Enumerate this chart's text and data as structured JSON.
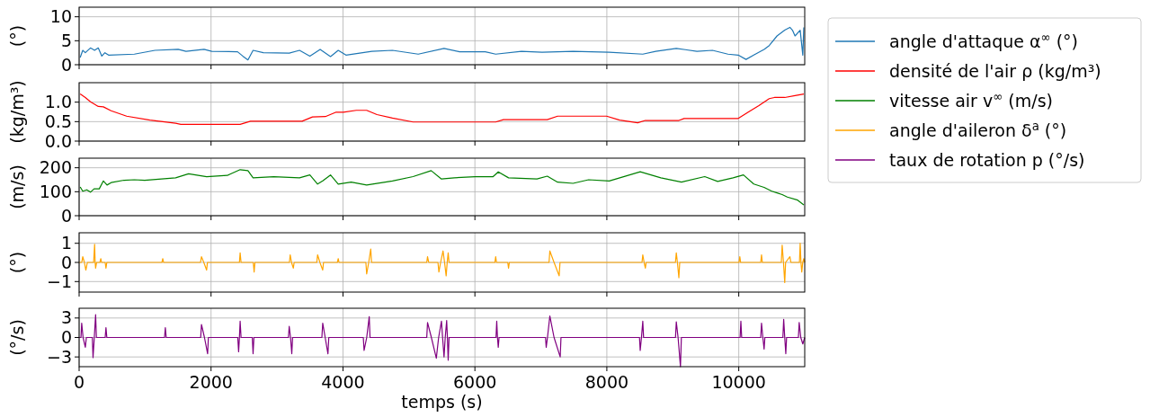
{
  "chart_data": [
    {
      "type": "line",
      "ylabel": "(°)",
      "xlim": [
        0,
        11000
      ],
      "xticks": [
        0,
        2000,
        4000,
        6000,
        8000,
        10000
      ],
      "ylim": [
        0,
        12
      ],
      "yticks": [
        0,
        5,
        10
      ],
      "grid": true,
      "legend": "right",
      "tick_labels": "y",
      "series": [
        {
          "name": "angle d'attaque α$^{∞}$ (°)",
          "color": "#1f77b4",
          "x": [
            16,
            55,
            94,
            172,
            235,
            290,
            344,
            391,
            446,
            837,
            1150,
            1502,
            1620,
            1894,
            2011,
            2402,
            2481,
            2559,
            2637,
            2793,
            3185,
            3341,
            3498,
            3654,
            3811,
            3928,
            4045,
            4437,
            4750,
            5141,
            5532,
            5767,
            6158,
            6315,
            6706,
            7019,
            7488,
            8036,
            8545,
            8741,
            9053,
            9366,
            9601,
            9836,
            9992,
            10110,
            10227,
            10384,
            10462,
            10580,
            10697,
            10775,
            10814,
            10853,
            10931,
            10971,
            10986
          ],
          "values": [
            1.5,
            3,
            2.5,
            3.5,
            3,
            3.5,
            1.8,
            2.5,
            2,
            2.2,
            3,
            3.2,
            2.8,
            3.2,
            2.8,
            2.7,
            1.8,
            1,
            3,
            2.5,
            2.4,
            3,
            1.8,
            3.2,
            1.7,
            3,
            2,
            2.8,
            3,
            2.2,
            3.4,
            2.7,
            2.7,
            2.2,
            2.8,
            2.6,
            2.8,
            2.6,
            2.2,
            2.8,
            3.4,
            2.8,
            3,
            2.2,
            2,
            1.1,
            2,
            3.2,
            4,
            6,
            7.2,
            7.8,
            7.2,
            6,
            7.2,
            2,
            7.8
          ]
        }
      ]
    },
    {
      "type": "line",
      "ylabel": "(kg/m³)",
      "xlim": [
        0,
        11000
      ],
      "xticks": [
        0,
        2000,
        4000,
        6000,
        8000,
        10000
      ],
      "ylim": [
        0,
        1.5
      ],
      "yticks": [
        {
          "value": 0,
          "label": "0.0"
        },
        {
          "value": 0.5,
          "label": "0.5"
        },
        {
          "value": 1,
          "label": "1.0"
        }
      ],
      "grid": true,
      "legend": "right",
      "tick_labels": "y",
      "series": [
        {
          "name": "densité de l'air ρ (kg/m³)",
          "color": "#ff0000",
          "x": [
            16,
            94,
            172,
            290,
            368,
            485,
            720,
            1072,
            1463,
            1542,
            2441,
            2598,
            3380,
            3537,
            3733,
            3889,
            4006,
            4202,
            4359,
            4515,
            4750,
            5063,
            6315,
            6432,
            7097,
            7254,
            7997,
            8193,
            8467,
            8584,
            9093,
            9171,
            9992,
            10149,
            10305,
            10462,
            10540,
            10697,
            10853,
            10986
          ],
          "values": [
            1.21,
            1.12,
            1.01,
            0.89,
            0.88,
            0.78,
            0.64,
            0.54,
            0.46,
            0.43,
            0.43,
            0.51,
            0.51,
            0.62,
            0.63,
            0.74,
            0.74,
            0.79,
            0.79,
            0.68,
            0.59,
            0.49,
            0.49,
            0.55,
            0.55,
            0.64,
            0.64,
            0.54,
            0.47,
            0.53,
            0.53,
            0.58,
            0.58,
            0.75,
            0.91,
            1.09,
            1.12,
            1.12,
            1.17,
            1.21
          ]
        }
      ]
    },
    {
      "type": "line",
      "ylabel": "(m/s)",
      "xlim": [
        0,
        11000
      ],
      "xticks": [
        0,
        2000,
        4000,
        6000,
        8000,
        10000
      ],
      "ylim": [
        0,
        240
      ],
      "yticks": [
        0,
        100,
        200
      ],
      "grid": true,
      "legend": "right",
      "tick_labels": "y",
      "series": [
        {
          "name": "vitesse air v$^{∞}$ (m/s)",
          "color": "#008000",
          "x": [
            16,
            55,
            117,
            172,
            227,
            305,
            368,
            423,
            485,
            681,
            837,
            994,
            1463,
            1659,
            1933,
            2246,
            2441,
            2559,
            2637,
            2950,
            3341,
            3498,
            3615,
            3693,
            3811,
            3928,
            4124,
            4359,
            4750,
            5063,
            5337,
            5493,
            5689,
            6002,
            6276,
            6354,
            6510,
            6941,
            7097,
            7254,
            7488,
            7723,
            8036,
            8506,
            8819,
            9132,
            9484,
            9680,
            9914,
            10071,
            10227,
            10384,
            10501,
            10580,
            10658,
            10736,
            10892,
            10986
          ],
          "values": [
            120,
            102,
            108,
            98,
            112,
            112,
            145,
            128,
            138,
            148,
            150,
            148,
            158,
            175,
            163,
            168,
            192,
            188,
            158,
            163,
            158,
            170,
            132,
            145,
            170,
            132,
            140,
            128,
            145,
            163,
            188,
            153,
            158,
            163,
            163,
            183,
            158,
            153,
            165,
            140,
            135,
            150,
            145,
            183,
            158,
            140,
            163,
            143,
            158,
            170,
            132,
            118,
            102,
            95,
            88,
            78,
            65,
            45
          ]
        }
      ]
    },
    {
      "type": "line",
      "ylabel": "(°)",
      "xlim": [
        0,
        11000
      ],
      "xticks": [
        0,
        2000,
        4000,
        6000,
        8000,
        10000
      ],
      "ylim": [
        -1.55,
        1.55
      ],
      "yticks": [
        {
          "value": -1,
          "label": "−1"
        },
        0,
        1
      ],
      "grid": true,
      "legend": "right",
      "tick_labels": "y",
      "series": [
        {
          "name": "angle d'aileron δ$^{a}$ (°)",
          "color": "#ffa500",
          "x": [
            0,
            40,
            55,
            80,
            102,
            125,
            220,
            235,
            243,
            250,
            265,
            315,
            329,
            340,
            395,
            407,
            420,
            1255,
            1268,
            1280,
            1840,
            1855,
            1890,
            1933,
            1945,
            2430,
            2441,
            2455,
            2640,
            2653,
            2665,
            3188,
            3200,
            3220,
            3247,
            3260,
            3603,
            3615,
            3650,
            3693,
            3705,
            3915,
            3928,
            3940,
            4347,
            4359,
            4390,
            4421,
            4433,
            5270,
            5282,
            5300,
            5440,
            5454,
            5480,
            5517,
            5540,
            5564,
            5580,
            5595,
            5608,
            6303,
            6315,
            6327,
            6498,
            6510,
            6522,
            7124,
            7136,
            7200,
            7277,
            7290,
            8533,
            8545,
            8565,
            8584,
            8596,
            9040,
            9053,
            9070,
            9092,
            9105,
            10004,
            10016,
            10028,
            10333,
            10345,
            10357,
            10645,
            10658,
            10678,
            10697,
            10710,
            10775,
            10790,
            10920,
            10931,
            10943,
            10955,
            10970,
            10986,
            11000
          ],
          "values": [
            0,
            0,
            0.3,
            0,
            -0.4,
            0,
            0,
            0.95,
            0,
            -0.3,
            0,
            0,
            0.2,
            0,
            0,
            -0.3,
            0,
            0,
            0.2,
            0,
            0,
            0.3,
            0,
            -0.4,
            0,
            0,
            0.5,
            0,
            0,
            -0.5,
            0,
            0,
            0.4,
            0,
            -0.3,
            0,
            0,
            0.4,
            0,
            -0.4,
            0,
            0,
            0.2,
            0,
            0,
            -0.6,
            0,
            0.7,
            0,
            0,
            0.3,
            0,
            0,
            -0.5,
            0,
            0.6,
            0,
            -0.7,
            0,
            0.5,
            0,
            0,
            0.3,
            0,
            0,
            -0.3,
            0,
            0,
            0.6,
            0,
            -0.7,
            0,
            0,
            0.4,
            0,
            -0.3,
            0,
            0,
            0.5,
            0,
            -0.8,
            0,
            0,
            0.3,
            0,
            0,
            0.4,
            0,
            0,
            0.9,
            0,
            -1.05,
            0,
            0.3,
            0,
            0,
            1,
            0,
            -0.5,
            0,
            0.2,
            0
          ]
        }
      ]
    },
    {
      "type": "line",
      "ylabel": "(°/s)",
      "xlabel": "temps (s)",
      "xlim": [
        0,
        11000
      ],
      "xticks": [
        0,
        2000,
        4000,
        6000,
        8000,
        10000
      ],
      "ylim": [
        -4.5,
        4.5
      ],
      "yticks": [
        {
          "value": -3,
          "label": "−3"
        },
        0,
        3
      ],
      "grid": true,
      "legend": "right",
      "series": [
        {
          "name": "taux de rotation p (°/s)",
          "color": "#800080",
          "x": [
            0,
            28,
            39,
            60,
            94,
            110,
            200,
            211,
            230,
            250,
            262,
            395,
            407,
            420,
            1295,
            1307,
            1320,
            1843,
            1855,
            1900,
            1948,
            1960,
            2405,
            2418,
            2430,
            2441,
            2455,
            2625,
            2637,
            2650,
            3173,
            3185,
            3205,
            3224,
            3236,
            3680,
            3693,
            3730,
            3772,
            3785,
            4308,
            4320,
            4360,
            4398,
            4410,
            5270,
            5282,
            5340,
            5415,
            5450,
            5493,
            5510,
            5532,
            5550,
            5572,
            5583,
            5595,
            5608,
            6320,
            6331,
            6342,
            6354,
            6366,
            7070,
            7081,
            7100,
            7136,
            7200,
            7293,
            7305,
            8495,
            8506,
            8525,
            8545,
            8557,
            9041,
            9053,
            9080,
            9116,
            9130,
            10020,
            10032,
            10044,
            10333,
            10345,
            10365,
            10384,
            10396,
            10669,
            10681,
            10697,
            10713,
            10725,
            10904,
            10916,
            10940,
            10971,
            11000
          ],
          "values": [
            0,
            0,
            2.2,
            0,
            -1.5,
            0,
            0,
            -3.1,
            0,
            3.5,
            0,
            0,
            1.5,
            0,
            0,
            1.5,
            0,
            0,
            2,
            0,
            -2.5,
            0,
            0,
            -2.2,
            0,
            2.5,
            0,
            0,
            -2.5,
            0,
            0,
            1.7,
            0,
            -2.5,
            0,
            0,
            2.2,
            0,
            -2.5,
            0,
            0,
            -2,
            0,
            3.2,
            0,
            0,
            2.3,
            0,
            -3.2,
            0,
            2.5,
            0,
            -3,
            0,
            2.6,
            0,
            -3.5,
            0,
            0,
            2.5,
            0,
            -1.5,
            0,
            0,
            -1.5,
            0,
            3.3,
            0,
            -3,
            0,
            0,
            -2,
            0,
            2.5,
            0,
            0,
            2.4,
            0,
            -4.5,
            0,
            0,
            2.5,
            0,
            0,
            2.2,
            0,
            -1.8,
            0,
            0,
            2.8,
            0,
            -2.5,
            0,
            0,
            2.3,
            0,
            -1,
            0
          ]
        }
      ]
    }
  ]
}
